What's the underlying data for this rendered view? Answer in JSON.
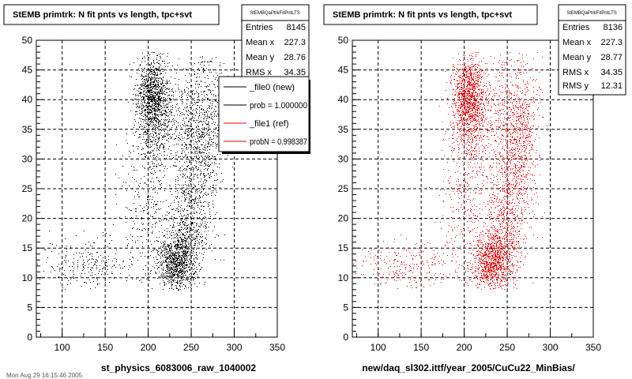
{
  "chart_data": [
    {
      "type": "scatter",
      "title": "StEMB primtrk: N fit pnts vs length, tpc+svt",
      "xlabel": "st_physics_6083006_raw_1040002",
      "ylabel": "",
      "xlim": [
        70,
        350
      ],
      "ylim": [
        0,
        50
      ],
      "xticks": [
        "100",
        "150",
        "200",
        "250",
        "300",
        "350"
      ],
      "yticks": [
        "0",
        "5",
        "10",
        "15",
        "20",
        "25",
        "30",
        "35",
        "40",
        "45",
        "50"
      ],
      "grid": true,
      "point_color": "#000000",
      "stats": {
        "name": "StEMBQaPtrkFitPntLTS",
        "rows": [
          {
            "label": "Entries",
            "value": "8145"
          },
          {
            "label": "Mean x",
            "value": "227.3"
          },
          {
            "label": "Mean y",
            "value": "28.76"
          },
          {
            "label": "RMS x",
            "value": "34.35"
          }
        ]
      },
      "legend": {
        "placement": "top-right",
        "entries": [
          {
            "text": "_file0 (new)",
            "color": "#000000"
          },
          {
            "text": "prob = 1.000000",
            "color": "#000000"
          },
          {
            "text": "_file1 (ref)",
            "color": "#dd0000"
          },
          {
            "text": "probN = 0.998387",
            "color": "#dd0000"
          }
        ]
      },
      "clusters": [
        {
          "x": 205,
          "y": 41,
          "sx": 9,
          "sy": 3.2,
          "n": 1000
        },
        {
          "x": 232,
          "y": 12.5,
          "sx": 11,
          "sy": 2.2,
          "n": 900
        },
        {
          "x": 208,
          "y": 36,
          "sx": 11,
          "sy": 4,
          "n": 500
        },
        {
          "x": 255,
          "y": 36,
          "sx": 16,
          "sy": 6,
          "n": 700
        },
        {
          "x": 252,
          "y": 22,
          "sx": 13,
          "sy": 6,
          "n": 600
        },
        {
          "x": 130,
          "y": 12,
          "sx": 30,
          "sy": 2.2,
          "n": 260
        },
        {
          "x": 200,
          "y": 22,
          "sx": 15,
          "sy": 7,
          "n": 300
        },
        {
          "x": 270,
          "y": 35,
          "sx": 8,
          "sy": 7,
          "n": 250
        },
        {
          "x": 240,
          "y": 16,
          "sx": 10,
          "sy": 3,
          "n": 300
        }
      ]
    },
    {
      "type": "scatter",
      "title": "StEMB primtrk: N fit pnts vs length, tpc+svt",
      "xlabel": "new/daq_sl302.ittf/year_2005/CuCu22_MinBias/",
      "ylabel": "",
      "xlim": [
        70,
        350
      ],
      "ylim": [
        0,
        50
      ],
      "xticks": [
        "100",
        "150",
        "200",
        "250",
        "300",
        "350"
      ],
      "yticks": [
        "0",
        "5",
        "10",
        "15",
        "20",
        "25",
        "30",
        "35",
        "40",
        "45",
        "50"
      ],
      "grid": true,
      "point_color": "#ee0000",
      "stats": {
        "name": "StEMBQaPtrkFitPntLTS",
        "rows": [
          {
            "label": "Entries",
            "value": "8136"
          },
          {
            "label": "Mean x",
            "value": "227.3"
          },
          {
            "label": "Mean y",
            "value": "28.77"
          },
          {
            "label": "RMS x",
            "value": "34.35"
          },
          {
            "label": "RMS y",
            "value": "12.31"
          }
        ]
      },
      "clusters": [
        {
          "x": 205,
          "y": 41,
          "sx": 9,
          "sy": 3.2,
          "n": 1000
        },
        {
          "x": 232,
          "y": 12.5,
          "sx": 11,
          "sy": 2.2,
          "n": 900
        },
        {
          "x": 208,
          "y": 36,
          "sx": 11,
          "sy": 4,
          "n": 500
        },
        {
          "x": 255,
          "y": 36,
          "sx": 16,
          "sy": 6,
          "n": 700
        },
        {
          "x": 252,
          "y": 22,
          "sx": 13,
          "sy": 6,
          "n": 600
        },
        {
          "x": 130,
          "y": 12,
          "sx": 30,
          "sy": 2.2,
          "n": 260
        },
        {
          "x": 200,
          "y": 22,
          "sx": 15,
          "sy": 7,
          "n": 300
        },
        {
          "x": 270,
          "y": 35,
          "sx": 8,
          "sy": 7,
          "n": 250
        },
        {
          "x": 240,
          "y": 16,
          "sx": 10,
          "sy": 3,
          "n": 300
        }
      ]
    }
  ],
  "footer": "Mon Aug 29 16:15:46 2005"
}
